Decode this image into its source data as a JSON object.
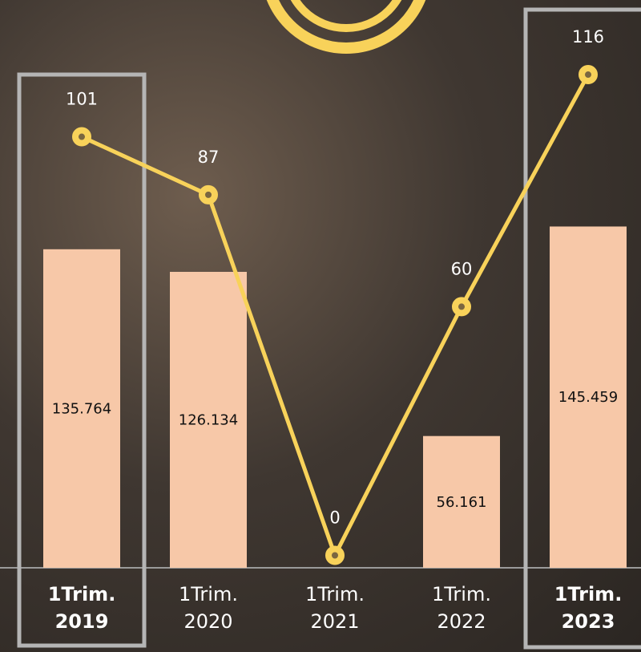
{
  "chart_data": {
    "type": "bar-line",
    "categories": [
      "1Trim. 2019",
      "1Trim. 2020",
      "1Trim. 2021",
      "1Trim. 2022",
      "1Trim. 2023"
    ],
    "series": [
      {
        "type": "bar",
        "color": "#f7c8a8",
        "values": [
          135764,
          126134,
          null,
          56161,
          145459
        ],
        "value_labels": [
          "135.764",
          "126.134",
          null,
          "56.161",
          "145.459"
        ]
      },
      {
        "type": "line",
        "axis": "y2",
        "color": "#f8d25a",
        "values": [
          101,
          87,
          0,
          60,
          116
        ]
      }
    ],
    "ylim": [
      0,
      242000
    ],
    "y2lim": [
      -3,
      134
    ],
    "highlight": [
      0,
      4
    ]
  }
}
